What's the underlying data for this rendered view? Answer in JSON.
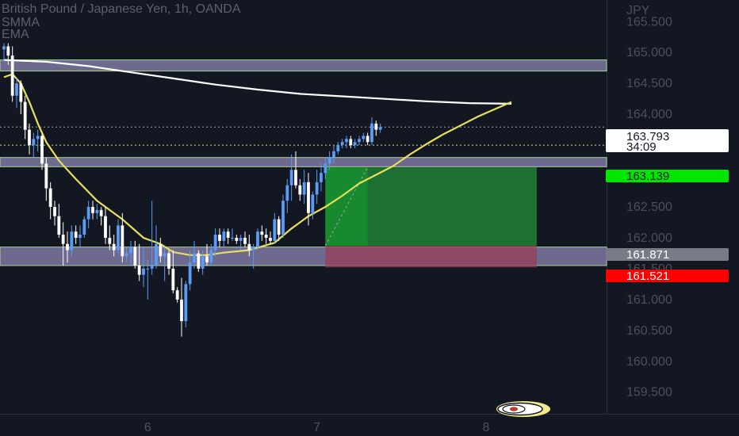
{
  "header": {
    "title": "British Pound / Japanese Yen, 1h, OANDA",
    "indicator_1": "SMMA",
    "indicator_2": "EMA"
  },
  "axis": {
    "currency": "JPY"
  },
  "price_tags": {
    "last_price": "163.793",
    "countdown": "34:09",
    "target": "163.139",
    "entry": "161.871",
    "stop": "161.521"
  },
  "colors": {
    "background": "#131722",
    "candle_up": "#5b9cf6",
    "candle_down": "#ffffff",
    "zone": "#8c86b4",
    "target_green": "#00e600",
    "stop_red": "#ff0000",
    "entry_gray": "#787b86",
    "ema": "#ffffff",
    "smma": "#e8e05a"
  },
  "chart_data": {
    "type": "candlestick",
    "symbol": "GBPJPY",
    "timeframe": "1h",
    "y_ticks": [
      "165.500",
      "165.000",
      "164.500",
      "164.000",
      "163.500",
      "163.000",
      "162.500",
      "162.000",
      "161.500",
      "161.000",
      "160.500",
      "160.000",
      "159.500"
    ],
    "x_ticks": [
      {
        "label": "6",
        "index": 34
      },
      {
        "label": "7",
        "index": 74
      },
      {
        "label": "8",
        "index": 114
      }
    ],
    "candles": [
      [
        165.05,
        165.15,
        164.85,
        165.1
      ],
      [
        165.1,
        165.15,
        164.8,
        164.95
      ],
      [
        164.95,
        165.1,
        164.2,
        164.3
      ],
      [
        164.3,
        164.6,
        164.1,
        164.5
      ],
      [
        164.5,
        164.55,
        164.0,
        164.2
      ],
      [
        164.2,
        164.3,
        163.6,
        163.75
      ],
      [
        163.75,
        163.85,
        163.35,
        163.5
      ],
      [
        163.5,
        163.7,
        163.3,
        163.6
      ],
      [
        163.6,
        163.75,
        163.4,
        163.65
      ],
      [
        163.65,
        163.7,
        163.1,
        163.2
      ],
      [
        163.2,
        163.3,
        162.6,
        162.8
      ],
      [
        162.8,
        162.9,
        162.3,
        162.5
      ],
      [
        162.5,
        162.6,
        162.2,
        162.35
      ],
      [
        162.35,
        162.55,
        162.0,
        162.05
      ],
      [
        162.05,
        162.25,
        161.55,
        161.9
      ],
      [
        161.9,
        162.1,
        161.6,
        161.8
      ],
      [
        161.8,
        162.2,
        161.7,
        162.1
      ],
      [
        162.1,
        162.2,
        161.9,
        162.0
      ],
      [
        162.0,
        162.2,
        161.85,
        162.05
      ],
      [
        162.05,
        162.35,
        162.0,
        162.3
      ],
      [
        162.3,
        162.6,
        162.15,
        162.5
      ],
      [
        162.5,
        162.6,
        162.3,
        162.4
      ],
      [
        162.4,
        162.55,
        162.3,
        162.45
      ],
      [
        162.45,
        162.5,
        162.2,
        162.35
      ],
      [
        162.35,
        162.5,
        161.9,
        162.0
      ],
      [
        162.0,
        162.2,
        161.8,
        161.9
      ],
      [
        161.9,
        162.05,
        161.7,
        161.8
      ],
      [
        161.8,
        162.3,
        161.75,
        162.2
      ],
      [
        162.2,
        162.4,
        161.6,
        161.7
      ],
      [
        161.7,
        161.85,
        161.6,
        161.75
      ],
      [
        161.75,
        161.95,
        161.55,
        161.85
      ],
      [
        161.85,
        161.95,
        161.5,
        161.55
      ],
      [
        161.55,
        161.9,
        161.3,
        161.4
      ],
      [
        161.4,
        161.85,
        161.2,
        161.5
      ],
      [
        161.5,
        161.65,
        161.0,
        161.5
      ],
      [
        161.5,
        162.6,
        161.4,
        161.55
      ],
      [
        161.55,
        162.2,
        161.5,
        161.9
      ],
      [
        161.9,
        162.0,
        161.6,
        161.7
      ],
      [
        161.7,
        161.85,
        161.3,
        161.75
      ],
      [
        161.75,
        161.8,
        161.4,
        161.5
      ],
      [
        161.5,
        161.8,
        161.1,
        161.15
      ],
      [
        161.15,
        161.2,
        160.95,
        161.0
      ],
      [
        161.0,
        161.35,
        160.4,
        160.65
      ],
      [
        160.65,
        161.3,
        160.55,
        161.25
      ],
      [
        161.25,
        161.8,
        161.15,
        161.6
      ],
      [
        161.6,
        161.95,
        161.5,
        161.75
      ],
      [
        161.75,
        161.8,
        161.45,
        161.5
      ],
      [
        161.5,
        161.8,
        161.4,
        161.7
      ],
      [
        161.7,
        161.9,
        161.55,
        161.6
      ],
      [
        161.6,
        161.9,
        161.55,
        161.8
      ],
      [
        161.8,
        162.15,
        161.7,
        162.05
      ],
      [
        162.05,
        162.15,
        161.85,
        161.95
      ],
      [
        161.95,
        162.15,
        161.85,
        162.1
      ],
      [
        162.1,
        162.15,
        161.9,
        162.0
      ],
      [
        162.0,
        162.15,
        161.95,
        162.0
      ],
      [
        162.0,
        162.05,
        161.9,
        161.95
      ],
      [
        161.95,
        162.05,
        161.8,
        162.0
      ],
      [
        162.0,
        162.1,
        161.85,
        161.9
      ],
      [
        161.9,
        162.05,
        161.7,
        161.8
      ],
      [
        161.8,
        161.9,
        161.5,
        161.85
      ],
      [
        161.85,
        162.15,
        161.8,
        162.1
      ],
      [
        162.1,
        162.2,
        161.95,
        162.05
      ],
      [
        162.05,
        162.15,
        161.9,
        162.0
      ],
      [
        162.0,
        162.1,
        161.9,
        161.95
      ],
      [
        161.95,
        162.4,
        161.9,
        162.3
      ],
      [
        162.3,
        162.35,
        161.95,
        162.05
      ],
      [
        162.05,
        162.7,
        162.0,
        162.6
      ],
      [
        162.6,
        162.95,
        162.4,
        162.85
      ],
      [
        162.85,
        163.35,
        162.6,
        163.1
      ],
      [
        163.1,
        163.4,
        162.8,
        162.85
      ],
      [
        162.85,
        162.95,
        162.6,
        162.7
      ],
      [
        162.7,
        163.1,
        162.55,
        162.9
      ],
      [
        162.9,
        163.05,
        162.2,
        162.4
      ],
      [
        162.4,
        162.75,
        162.3,
        162.7
      ],
      [
        162.7,
        163.1,
        162.55,
        162.9
      ],
      [
        162.9,
        163.2,
        162.75,
        163.05
      ],
      [
        163.05,
        163.3,
        162.95,
        163.2
      ],
      [
        163.2,
        163.4,
        163.1,
        163.3
      ],
      [
        163.3,
        163.5,
        163.2,
        163.4
      ],
      [
        163.4,
        163.55,
        163.35,
        163.5
      ],
      [
        163.5,
        163.6,
        163.45,
        163.55
      ],
      [
        163.55,
        163.65,
        163.45,
        163.6
      ],
      [
        163.6,
        163.65,
        163.45,
        163.5
      ],
      [
        163.5,
        163.6,
        163.45,
        163.55
      ],
      [
        163.55,
        163.65,
        163.5,
        163.6
      ],
      [
        163.6,
        163.7,
        163.55,
        163.65
      ],
      [
        163.65,
        163.7,
        163.5,
        163.55
      ],
      [
        163.55,
        163.95,
        163.5,
        163.85
      ],
      [
        163.85,
        163.9,
        163.65,
        163.75
      ],
      [
        163.75,
        163.85,
        163.7,
        163.79
      ]
    ],
    "ema": [
      [
        0,
        164.88
      ],
      [
        10,
        164.85
      ],
      [
        20,
        164.78
      ],
      [
        30,
        164.68
      ],
      [
        40,
        164.58
      ],
      [
        50,
        164.48
      ],
      [
        60,
        164.4
      ],
      [
        70,
        164.33
      ],
      [
        80,
        164.29
      ],
      [
        90,
        164.25
      ],
      [
        100,
        164.21
      ],
      [
        110,
        164.18
      ],
      [
        120,
        164.17
      ]
    ],
    "smma": [
      [
        0,
        164.6
      ],
      [
        2,
        164.65
      ],
      [
        4,
        164.5
      ],
      [
        6,
        164.2
      ],
      [
        8,
        163.85
      ],
      [
        10,
        163.55
      ],
      [
        13,
        163.25
      ],
      [
        17,
        162.95
      ],
      [
        22,
        162.6
      ],
      [
        28,
        162.3
      ],
      [
        33,
        162.0
      ],
      [
        37,
        161.9
      ],
      [
        40,
        161.77
      ],
      [
        44,
        161.72
      ],
      [
        48,
        161.72
      ],
      [
        52,
        161.76
      ],
      [
        58,
        161.8
      ],
      [
        64,
        161.92
      ],
      [
        68,
        162.15
      ],
      [
        72,
        162.35
      ],
      [
        76,
        162.5
      ],
      [
        80,
        162.68
      ],
      [
        84,
        162.88
      ],
      [
        88,
        163.02
      ],
      [
        92,
        163.16
      ],
      [
        96,
        163.35
      ],
      [
        100,
        163.52
      ],
      [
        104,
        163.68
      ],
      [
        108,
        163.82
      ],
      [
        112,
        163.96
      ],
      [
        116,
        164.08
      ],
      [
        120,
        164.2
      ]
    ],
    "zones": [
      {
        "low": 164.7,
        "high": 164.88
      },
      {
        "low": 163.15,
        "high": 163.3
      },
      {
        "low": 161.55,
        "high": 161.85
      }
    ],
    "position": {
      "type": "long",
      "start_index": 76,
      "end_index": 126,
      "entry": 161.871,
      "target": 163.139,
      "stop": 161.521
    },
    "last_price": 163.793,
    "price_line": 163.5,
    "y_range": [
      159.15,
      165.85
    ]
  }
}
